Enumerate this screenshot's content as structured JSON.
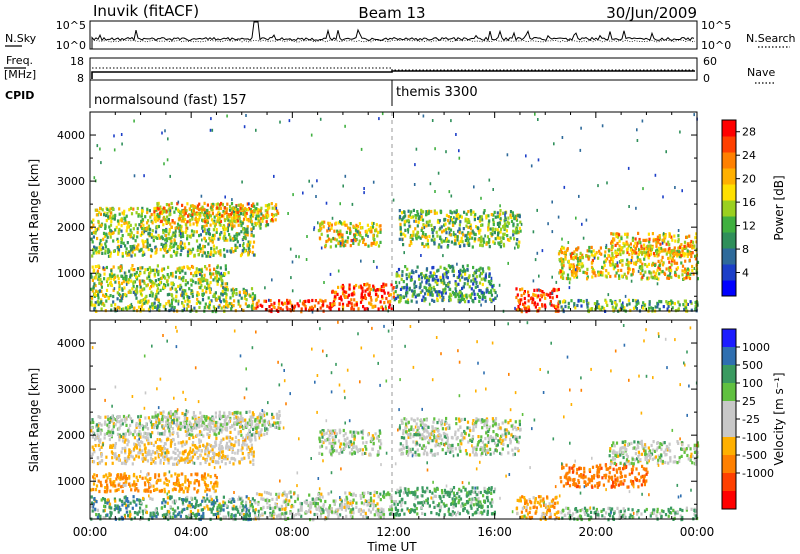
{
  "header": {
    "station": "Inuvik (fitACF)",
    "beam": "Beam 13",
    "date": "30/Jun/2009"
  },
  "top_panel": {
    "left_label": "N.Sky",
    "right_label": "N.Search",
    "left_ticks": [
      "10^5",
      "10^0"
    ],
    "right_ticks": [
      "10^5",
      "10^0"
    ]
  },
  "freq_panel": {
    "left_label_1": "Freq.",
    "left_label_2": "[MHz]",
    "right_label": "Nave",
    "left_ticks": [
      "18",
      "8"
    ],
    "right_ticks": [
      "60",
      "0"
    ]
  },
  "cpid_panel": {
    "label": "CPID",
    "modes": [
      {
        "text": "normalsound (fast) 157",
        "start_hour": 0
      },
      {
        "text": "themis 3300",
        "start_hour": 12
      }
    ]
  },
  "power_colorbar": {
    "title": "Power [dB]",
    "ticks": [
      "28",
      "24",
      "20",
      "16",
      "12",
      "8",
      "4"
    ],
    "colors": [
      "#0000ff",
      "#1c3fc8",
      "#2e6a9a",
      "#2f8f5a",
      "#40b040",
      "#9ad020",
      "#ffe000",
      "#ffb000",
      "#ff8000",
      "#ff4000",
      "#ff0000"
    ]
  },
  "velocity_colorbar": {
    "title": "Velocity [m s⁻¹]",
    "ticks": [
      "1000",
      "500",
      "100",
      "25",
      "-25",
      "-100",
      "-500",
      "-1000"
    ],
    "colors": [
      "#1c1cff",
      "#2f6fb0",
      "#3a9a60",
      "#60c040",
      "#c8c8c8",
      "#c8c8c8",
      "#ffb000",
      "#ff8000",
      "#ff4000",
      "#ff0000"
    ]
  },
  "chart_data": [
    {
      "type": "heatmap",
      "ylabel": "Slant Range [km]",
      "xlabel": "Time UT",
      "x_range_hours": [
        0,
        24
      ],
      "ylim": [
        180,
        4500
      ],
      "yticks": [
        1000,
        2000,
        3000,
        4000
      ],
      "xtick_labels": [
        "00:00",
        "04:00",
        "08:00",
        "12:00",
        "16:00",
        "20:00",
        "00:00"
      ],
      "colorbar_title": "Power [dB]",
      "colorbar_range": [
        0,
        30
      ],
      "scatter_regions": [
        {
          "t0": 0,
          "t1": 7,
          "r0": 2000,
          "r1": 2450,
          "value": 16
        },
        {
          "t0": 2.5,
          "t1": 7.5,
          "r0": 2150,
          "r1": 2550,
          "value": 20
        },
        {
          "t0": 0,
          "t1": 6.5,
          "r0": 1400,
          "r1": 2000,
          "value": 14
        },
        {
          "t0": 0,
          "t1": 5.5,
          "r0": 700,
          "r1": 1200,
          "value": 16
        },
        {
          "t0": 0,
          "t1": 6.5,
          "r0": 200,
          "r1": 700,
          "value": 14
        },
        {
          "t0": 6.5,
          "t1": 9.5,
          "r0": 200,
          "r1": 450,
          "value": 28
        },
        {
          "t0": 9.5,
          "t1": 12,
          "r0": 250,
          "r1": 800,
          "value": 26
        },
        {
          "t0": 9.0,
          "t1": 11.5,
          "r0": 1600,
          "r1": 2150,
          "value": 18
        },
        {
          "t0": 12.2,
          "t1": 17.0,
          "r0": 1600,
          "r1": 2400,
          "value": 14
        },
        {
          "t0": 12,
          "t1": 16,
          "r0": 400,
          "r1": 1200,
          "value": 10
        },
        {
          "t0": 16.8,
          "t1": 18.5,
          "r0": 200,
          "r1": 700,
          "value": 27
        },
        {
          "t0": 18.5,
          "t1": 24,
          "r0": 200,
          "r1": 450,
          "value": 12
        },
        {
          "t0": 18.5,
          "t1": 24,
          "r0": 900,
          "r1": 1600,
          "value": 18
        },
        {
          "t0": 20.5,
          "t1": 24,
          "r0": 1400,
          "r1": 1900,
          "value": 20
        }
      ]
    },
    {
      "type": "heatmap",
      "ylabel": "Slant Range [km]",
      "xlabel": "Time UT",
      "x_range_hours": [
        0,
        24
      ],
      "ylim": [
        180,
        4500
      ],
      "yticks": [
        1000,
        2000,
        3000,
        4000
      ],
      "xtick_labels": [
        "00:00",
        "04:00",
        "08:00",
        "12:00",
        "16:00",
        "20:00",
        "00:00"
      ],
      "colorbar_title": "Velocity [m s⁻¹]",
      "scatter_regions": [
        {
          "t0": 0,
          "t1": 7,
          "r0": 2000,
          "r1": 2450,
          "value": 0
        },
        {
          "t0": 2.5,
          "t1": 7.5,
          "r0": 2150,
          "r1": 2550,
          "value": 0
        },
        {
          "t0": 0,
          "t1": 6.5,
          "r0": 1400,
          "r1": 2000,
          "value": -50
        },
        {
          "t0": 0,
          "t1": 5.0,
          "r0": 800,
          "r1": 1200,
          "value": -300
        },
        {
          "t0": 0,
          "t1": 6.5,
          "r0": 200,
          "r1": 700,
          "value": 150
        },
        {
          "t0": 6.5,
          "t1": 9.5,
          "r0": 200,
          "r1": 800,
          "value": 0
        },
        {
          "t0": 9.5,
          "t1": 12,
          "r0": 250,
          "r1": 800,
          "value": 0
        },
        {
          "t0": 9.0,
          "t1": 11.5,
          "r0": 1600,
          "r1": 2150,
          "value": 0
        },
        {
          "t0": 12.2,
          "t1": 17.0,
          "r0": 1600,
          "r1": 2400,
          "value": 0
        },
        {
          "t0": 12,
          "t1": 16,
          "r0": 300,
          "r1": 900,
          "value": 80
        },
        {
          "t0": 16.8,
          "t1": 18.5,
          "r0": 200,
          "r1": 700,
          "value": -200
        },
        {
          "t0": 18.5,
          "t1": 24,
          "r0": 200,
          "r1": 450,
          "value": 50
        },
        {
          "t0": 18.5,
          "t1": 22,
          "r0": 900,
          "r1": 1400,
          "value": -600
        },
        {
          "t0": 20.5,
          "t1": 24,
          "r0": 1400,
          "r1": 1900,
          "value": 0
        }
      ]
    }
  ]
}
